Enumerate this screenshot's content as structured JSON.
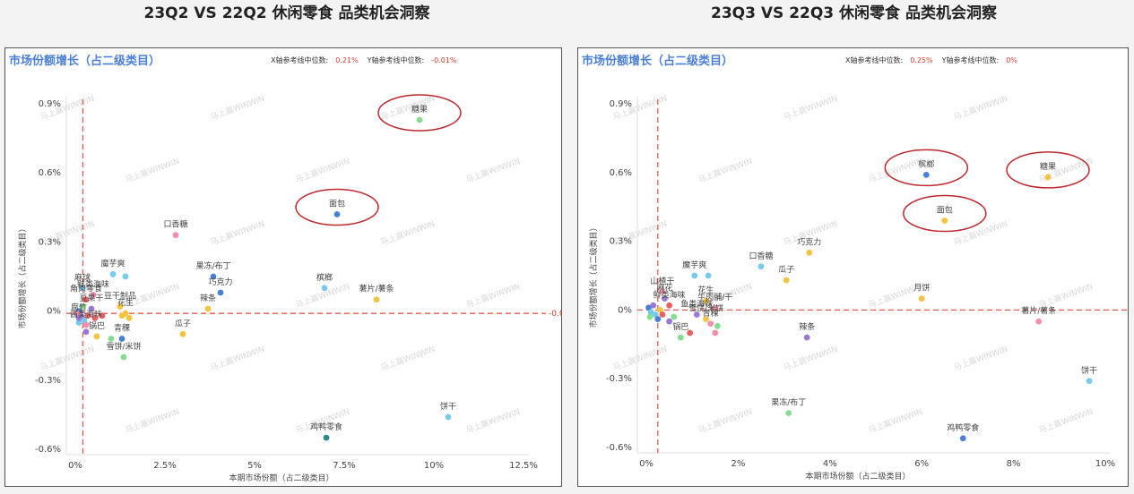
{
  "chart_data": [
    {
      "type": "scatter",
      "title": "23Q2 VS 22Q2 休闲零食 品类机会洞察",
      "subtitle": "市场份额增长（占二级类目）",
      "xlabel": "本期市场份额（占二级类目）",
      "ylabel": "市场份额增长（占二级类目）",
      "xlim": [
        0,
        12.5
      ],
      "ylim": [
        -0.6,
        0.9
      ],
      "x_ticks": [
        "0%",
        "2.5%",
        "5%",
        "7.5%",
        "10%",
        "12.5%"
      ],
      "y_ticks": [
        "0.9%",
        "0.6%",
        "0.3%",
        "0%",
        "-0.3%",
        "-0.6%"
      ],
      "x_ref_label": "X轴参考线中位数:",
      "x_ref_value": "0.21%",
      "x_ref": 0.21,
      "y_ref_label": "Y轴参考线中位数:",
      "y_ref_value": "-0.01%",
      "y_ref": -0.01,
      "watermark": "马上赢WINWIN",
      "highlighted": [
        "糖果",
        "面包"
      ],
      "points": [
        {
          "label": "糖果",
          "x": 9.6,
          "y": 0.83,
          "color": "#86dc8f"
        },
        {
          "label": "面包",
          "x": 7.3,
          "y": 0.42,
          "color": "#4a7fd8"
        },
        {
          "label": "口香糖",
          "x": 2.8,
          "y": 0.33,
          "color": "#f28fae"
        },
        {
          "label": "果冻/布丁",
          "x": 3.85,
          "y": 0.15,
          "color": "#4a7fd8"
        },
        {
          "label": "巧克力",
          "x": 4.05,
          "y": 0.08,
          "color": "#4a7fd8"
        },
        {
          "label": "辣条",
          "x": 3.7,
          "y": 0.01,
          "color": "#f2c440"
        },
        {
          "label": "槟榔",
          "x": 6.95,
          "y": 0.1,
          "color": "#76c9ef"
        },
        {
          "label": "薯片/薯条",
          "x": 8.4,
          "y": 0.05,
          "color": "#f2c440"
        },
        {
          "label": "瓜子",
          "x": 3.0,
          "y": -0.1,
          "color": "#f2c440"
        },
        {
          "label": "魔芋爽",
          "x": 1.05,
          "y": 0.16,
          "color": "#76c9ef"
        },
        {
          "label": "",
          "x": 1.4,
          "y": 0.15,
          "color": "#76c9ef"
        },
        {
          "label": "豆干制品",
          "x": 1.25,
          "y": 0.02,
          "color": "#f2c440"
        },
        {
          "label": "花生",
          "x": 1.4,
          "y": -0.01,
          "color": "#f2c440"
        },
        {
          "label": "",
          "x": 1.5,
          "y": -0.03,
          "color": "#f2c440"
        },
        {
          "label": "",
          "x": 1.3,
          "y": -0.02,
          "color": "#f2c440"
        },
        {
          "label": "麻球",
          "x": 0.2,
          "y": 0.1,
          "color": "#76c9ef"
        },
        {
          "label": "鲜类海味",
          "x": 0.5,
          "y": 0.07,
          "color": "#f28fae"
        },
        {
          "label": "角肉零食",
          "x": 0.3,
          "y": 0.05,
          "color": "#e85f5f"
        },
        {
          "label": "豆果干",
          "x": 0.45,
          "y": 0.01,
          "color": "#9a78d6"
        },
        {
          "label": "",
          "x": 0.1,
          "y": 0.0,
          "color": "#4a7fd8"
        },
        {
          "label": "",
          "x": 0.15,
          "y": -0.02,
          "color": "#9a78d6"
        },
        {
          "label": "",
          "x": 0.25,
          "y": -0.04,
          "color": "#76c9ef"
        },
        {
          "label": "",
          "x": 0.35,
          "y": -0.02,
          "color": "#e85f5f"
        },
        {
          "label": "",
          "x": 0.55,
          "y": -0.03,
          "color": "#e85f5f"
        },
        {
          "label": "",
          "x": 0.75,
          "y": -0.02,
          "color": "#e85f5f"
        },
        {
          "label": "",
          "x": 0.05,
          "y": -0.01,
          "color": "#f28fae"
        },
        {
          "label": "",
          "x": 0.2,
          "y": 0.02,
          "color": "#86dc8f"
        },
        {
          "label": "",
          "x": 0.1,
          "y": -0.05,
          "color": "#76c9ef"
        },
        {
          "label": "腐竹",
          "x": 0.1,
          "y": -0.03,
          "color": "#9a78d6"
        },
        {
          "label": "酱类海味",
          "x": 0.3,
          "y": -0.06,
          "color": "#f28fae"
        },
        {
          "label": "锅巴",
          "x": 0.6,
          "y": -0.11,
          "color": "#f2c440"
        },
        {
          "label": "青稞",
          "x": 1.3,
          "y": -0.12,
          "color": "#4a7fd8"
        },
        {
          "label": "",
          "x": 1.0,
          "y": -0.12,
          "color": "#86dc8f"
        },
        {
          "label": "",
          "x": 0.3,
          "y": -0.09,
          "color": "#9a78d6"
        },
        {
          "label": "雪饼/米饼",
          "x": 1.35,
          "y": -0.2,
          "color": "#86dc8f"
        },
        {
          "label": "饼干",
          "x": 10.4,
          "y": -0.46,
          "color": "#76c9ef"
        },
        {
          "label": "鸡鸭零食",
          "x": 7.0,
          "y": -0.55,
          "color": "#2a8a8a"
        }
      ]
    },
    {
      "type": "scatter",
      "title": "23Q3 VS 22Q3 休闲零食 品类机会洞察",
      "subtitle": "市场份额增长（占二级类目）",
      "xlabel": "本期市场份额（占二级类目）",
      "ylabel": "市场份额增长（占二级类目）",
      "xlim": [
        0,
        10
      ],
      "ylim": [
        -0.6,
        0.9
      ],
      "x_ticks": [
        "0%",
        "2%",
        "4%",
        "6%",
        "8%",
        "10%"
      ],
      "y_ticks": [
        "0.9%",
        "0.6%",
        "0.3%",
        "0%",
        "-0.3%",
        "-0.6%"
      ],
      "x_ref_label": "X轴参考线中位数:",
      "x_ref_value": "0.25%",
      "x_ref": 0.25,
      "y_ref_label": "Y轴参考线中位数:",
      "y_ref_value": "0%",
      "y_ref": 0.0,
      "watermark": "马上赢WINWIN",
      "highlighted": [
        "槟榔",
        "糖果",
        "面包"
      ],
      "points": [
        {
          "label": "槟榔",
          "x": 6.1,
          "y": 0.59,
          "color": "#4a7fd8"
        },
        {
          "label": "糖果",
          "x": 8.75,
          "y": 0.58,
          "color": "#f2c440"
        },
        {
          "label": "面包",
          "x": 6.5,
          "y": 0.39,
          "color": "#f2c440"
        },
        {
          "label": "巧克力",
          "x": 3.55,
          "y": 0.25,
          "color": "#f2c440"
        },
        {
          "label": "口香糖",
          "x": 2.5,
          "y": 0.19,
          "color": "#76c9ef"
        },
        {
          "label": "瓜子",
          "x": 3.05,
          "y": 0.13,
          "color": "#f2c440"
        },
        {
          "label": "魔芋爽",
          "x": 1.05,
          "y": 0.15,
          "color": "#76c9ef"
        },
        {
          "label": "",
          "x": 1.35,
          "y": 0.15,
          "color": "#76c9ef"
        },
        {
          "label": "月饼",
          "x": 6.0,
          "y": 0.05,
          "color": "#f2c440"
        },
        {
          "label": "薯片/薯条",
          "x": 8.55,
          "y": -0.05,
          "color": "#f28fae"
        },
        {
          "label": "辣条",
          "x": 3.5,
          "y": -0.12,
          "color": "#9a78d6"
        },
        {
          "label": "饼干",
          "x": 9.65,
          "y": -0.31,
          "color": "#76c9ef"
        },
        {
          "label": "果冻/布丁",
          "x": 3.1,
          "y": -0.45,
          "color": "#86dc8f"
        },
        {
          "label": "鸡鸭零食",
          "x": 6.9,
          "y": -0.56,
          "color": "#4a7fd8"
        },
        {
          "label": "山楂干",
          "x": 0.35,
          "y": 0.08,
          "color": "#f28fae"
        },
        {
          "label": "麻花",
          "x": 0.4,
          "y": 0.05,
          "color": "#9a78d6"
        },
        {
          "label": "鲜类海味",
          "x": 0.5,
          "y": 0.02,
          "color": "#e85f5f"
        },
        {
          "label": "花生",
          "x": 1.3,
          "y": 0.04,
          "color": "#f2c440"
        },
        {
          "label": "牛肉脯/干",
          "x": 1.5,
          "y": 0.01,
          "color": "#f28fae"
        },
        {
          "label": "鱼类海味",
          "x": 1.1,
          "y": -0.02,
          "color": "#9a78d6"
        },
        {
          "label": "雪饼/米饼",
          "x": 1.3,
          "y": -0.04,
          "color": "#f2c440"
        },
        {
          "label": "青稞",
          "x": 1.4,
          "y": -0.06,
          "color": "#f28fae"
        },
        {
          "label": "锅巴",
          "x": 0.75,
          "y": -0.12,
          "color": "#86dc8f"
        },
        {
          "label": "",
          "x": 1.5,
          "y": -0.1,
          "color": "#f28fae"
        },
        {
          "label": "",
          "x": 1.55,
          "y": -0.07,
          "color": "#86dc8f"
        },
        {
          "label": "",
          "x": 0.95,
          "y": -0.1,
          "color": "#e85f5f"
        },
        {
          "label": "",
          "x": 0.5,
          "y": -0.05,
          "color": "#9a78d6"
        },
        {
          "label": "",
          "x": 0.6,
          "y": -0.03,
          "color": "#86dc8f"
        },
        {
          "label": "",
          "x": 0.05,
          "y": 0.01,
          "color": "#4a7fd8"
        },
        {
          "label": "",
          "x": 0.1,
          "y": -0.01,
          "color": "#76c9ef"
        },
        {
          "label": "",
          "x": 0.15,
          "y": 0.02,
          "color": "#9a78d6"
        },
        {
          "label": "",
          "x": 0.2,
          "y": -0.02,
          "color": "#76c9ef"
        },
        {
          "label": "",
          "x": 0.25,
          "y": -0.04,
          "color": "#4a7fd8"
        },
        {
          "label": "",
          "x": 0.3,
          "y": 0.0,
          "color": "#f2c440"
        },
        {
          "label": "",
          "x": 0.35,
          "y": -0.02,
          "color": "#e85f5f"
        },
        {
          "label": "",
          "x": 0.08,
          "y": -0.03,
          "color": "#86dc8f"
        }
      ]
    }
  ]
}
